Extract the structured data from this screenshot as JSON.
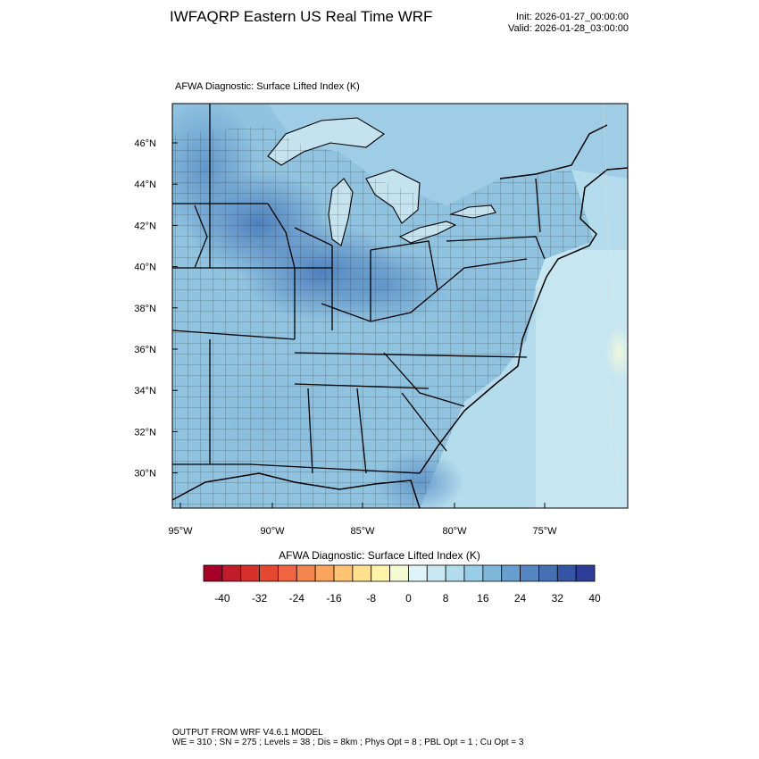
{
  "header": {
    "title": "IWFAQRP Eastern US Real Time WRF",
    "init": "Init: 2026-01-27_00:00:00",
    "valid": "Valid: 2026-01-28_03:00:00"
  },
  "plot": {
    "title": "AFWA Diagnostic: Surface Lifted Index   (K)",
    "lat_labels": [
      "46°N",
      "44°N",
      "42°N",
      "40°N",
      "38°N",
      "36°N",
      "34°N",
      "32°N",
      "30°N"
    ],
    "lon_labels": [
      "95°W",
      "90°W",
      "85°W",
      "80°W",
      "75°W"
    ],
    "lat_range": [
      28.4,
      48.0
    ],
    "lon_range": [
      -95.3,
      -70.2
    ]
  },
  "colorbar": {
    "title": "AFWA Diagnostic: Surface Lifted Index  (K)",
    "tick_labels": [
      "-40",
      "-32",
      "-24",
      "-16",
      "-8",
      "0",
      "8",
      "16",
      "24",
      "32",
      "40"
    ],
    "colors": [
      "#a50026",
      "#c11c2a",
      "#d7302a",
      "#e4482e",
      "#f06441",
      "#f5854e",
      "#f9a55e",
      "#fdc373",
      "#fee08f",
      "#fef3a8",
      "#f4fbd3",
      "#e0f3f8",
      "#c9e8f2",
      "#b2dcec",
      "#99cde5",
      "#7eb7da",
      "#679fcf",
      "#5686c1",
      "#4470b5",
      "#3555a6",
      "#2d3e99"
    ]
  },
  "footer": {
    "line1": "OUTPUT FROM WRF V4.6.1 MODEL",
    "line2": "WE = 310 ; SN = 275 ; Levels = 38 ; Dis = 8km ; Phys Opt = 8 ; PBL Opt = 1 ; Cu Opt = 3"
  }
}
